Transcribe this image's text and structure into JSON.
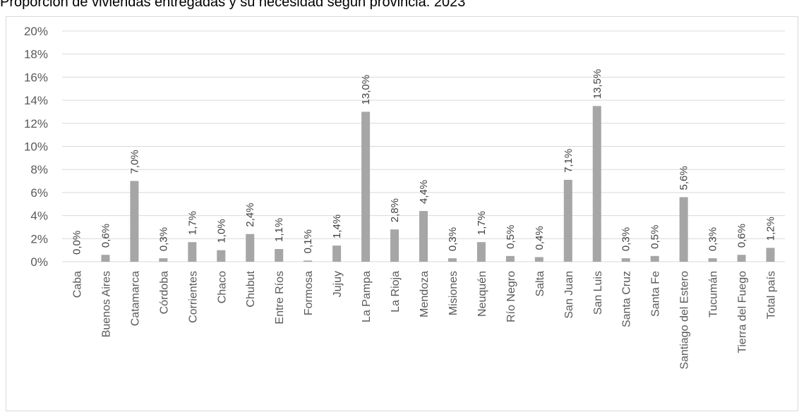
{
  "title": "Proporción de viviendas entregadas y su necesidad según provincia. 2023",
  "colors": {
    "bar": "#a6a6a6",
    "grid": "#d9d9d9",
    "text": "#595959"
  },
  "chart_data": {
    "type": "bar",
    "title": "Proporción de viviendas entregadas y su necesidad según provincia. 2023",
    "xlabel": "",
    "ylabel": "",
    "ylim": [
      0,
      20
    ],
    "y_ticks": [
      "0%",
      "2%",
      "4%",
      "6%",
      "8%",
      "10%",
      "12%",
      "14%",
      "16%",
      "18%",
      "20%"
    ],
    "grid": true,
    "categories": [
      "Caba",
      "Buenos Aires",
      "Catamarca",
      "Córdoba",
      "Corrientes",
      "Chaco",
      "Chubut",
      "Entre Ríos",
      "Formosa",
      "Jujuy",
      "La Pampa",
      "La Rioja",
      "Mendoza",
      "Misiones",
      "Neuquén",
      "Río Negro",
      "Salta",
      "San Juan",
      "San Luis",
      "Santa Cruz",
      "Santa Fe",
      "Santiago del Estero",
      "Tucumán",
      "Tierra del Fuego",
      "Total país"
    ],
    "values": [
      0.0,
      0.6,
      7.0,
      0.3,
      1.7,
      1.0,
      2.4,
      1.1,
      0.1,
      1.4,
      13.0,
      2.8,
      4.4,
      0.3,
      1.7,
      0.5,
      0.4,
      7.1,
      13.5,
      0.3,
      0.5,
      5.6,
      0.3,
      0.6,
      1.2
    ],
    "labels": [
      "0,0%",
      "0,6%",
      "7,0%",
      "0,3%",
      "1,7%",
      "1,0%",
      "2,4%",
      "1,1%",
      "0,1%",
      "1,4%",
      "13,0%",
      "2,8%",
      "4,4%",
      "0,3%",
      "1,7%",
      "0,5%",
      "0,4%",
      "7,1%",
      "13,5%",
      "0,3%",
      "0,5%",
      "5,6%",
      "0,3%",
      "0,6%",
      "1,2%"
    ]
  }
}
